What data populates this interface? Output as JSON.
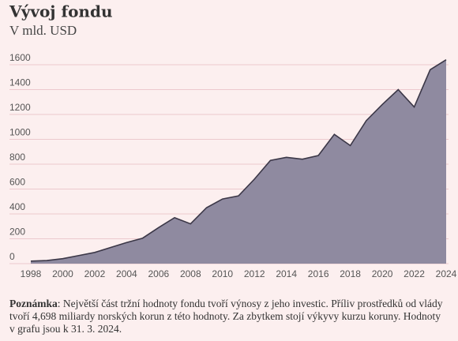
{
  "chart_data": {
    "type": "area",
    "title": "Vývoj fondu",
    "subtitle": "V mld. USD",
    "x": [
      1998,
      1999,
      2000,
      2001,
      2002,
      2003,
      2004,
      2005,
      2006,
      2007,
      2008,
      2009,
      2010,
      2011,
      2012,
      2013,
      2014,
      2015,
      2016,
      2017,
      2018,
      2019,
      2020,
      2021,
      2022,
      2023,
      2024
    ],
    "values": [
      20,
      25,
      40,
      65,
      90,
      130,
      170,
      205,
      290,
      370,
      320,
      450,
      520,
      545,
      680,
      830,
      855,
      840,
      870,
      1040,
      950,
      1150,
      1280,
      1400,
      1260,
      1560,
      1640
    ],
    "color": "#8f8aa0",
    "line_color": "#3b3747",
    "xlim": [
      1998,
      2024
    ],
    "xticks": [
      1998,
      2000,
      2002,
      2004,
      2006,
      2008,
      2010,
      2012,
      2014,
      2016,
      2018,
      2020,
      2022,
      2024
    ],
    "ylim": [
      0,
      1600
    ],
    "yticks": [
      0,
      200,
      400,
      600,
      800,
      1000,
      1200,
      1400,
      1600
    ],
    "grid": true,
    "note": {
      "label": "Poznámka",
      "text": ": Největší část tržní hodnoty fondu tvoří výnosy z jeho investic. Příliv prostředků od vlády tvoří 4,698 miliardy norských korun z této hodnoty. Za zbytkem stojí výkyvy kurzu koruny. Hodnoty v grafu jsou k 31. 3. 2024."
    }
  }
}
